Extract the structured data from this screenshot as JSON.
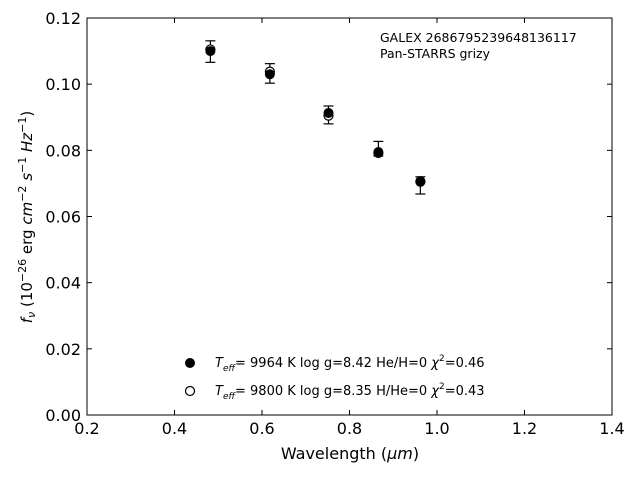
{
  "chart_data": {
    "type": "scatter",
    "xlabel_main": "Wavelength (",
    "xlabel_unit": "μm",
    "xlabel_close": ")",
    "ylabel_f": "f",
    "ylabel_sub": "ν",
    "ylabel_prefix": " (10",
    "ylabel_exp": "−26",
    "ylabel_unit_a": " erg ",
    "ylabel_cm": "cm",
    "ylabel_cm_exp": "−2",
    "ylabel_s": " s",
    "ylabel_s_exp": "−1",
    "ylabel_hz": " Hz",
    "ylabel_hz_exp": "−1",
    "ylabel_close": ")",
    "xlim": [
      0.2,
      1.4
    ],
    "ylim": [
      0.0,
      0.12
    ],
    "x_ticks": [
      0.2,
      0.4,
      0.6,
      0.8,
      1.0,
      1.2,
      1.4
    ],
    "x_tick_labels": [
      "0.2",
      "0.4",
      "0.6",
      "0.8",
      "1.0",
      "1.2",
      "1.4"
    ],
    "y_ticks": [
      0.0,
      0.02,
      0.04,
      0.06,
      0.08,
      0.1,
      0.12
    ],
    "y_tick_labels": [
      "0.00",
      "0.02",
      "0.04",
      "0.06",
      "0.08",
      "0.10",
      "0.12"
    ],
    "annotation_lines": [
      "GALEX 2686795239648136117",
      "Pan-STARRS grizy"
    ],
    "observed": {
      "x": [
        0.482,
        0.618,
        0.752,
        0.866,
        0.962
      ],
      "y": [
        0.11,
        0.1033,
        0.0909,
        0.0795,
        0.0707
      ],
      "err_low": [
        0.1066,
        0.1003,
        0.088,
        0.0783,
        0.0668
      ],
      "err_high": [
        0.1131,
        0.1062,
        0.0934,
        0.0827,
        0.072
      ]
    },
    "series": [
      {
        "marker": "filled",
        "x": [
          0.482,
          0.618,
          0.752,
          0.866,
          0.962
        ],
        "y": [
          0.11,
          0.103,
          0.0913,
          0.0795,
          0.0707
        ],
        "legend": {
          "t": "T",
          "t_sub": "eff",
          "text_a": "=  9964 K  log g=8.42  He/H=0  ",
          "chi": "χ",
          "chi_exp": "2",
          "text_b": "=0.46"
        }
      },
      {
        "marker": "open",
        "x": [
          0.482,
          0.618,
          0.752,
          0.866,
          0.962
        ],
        "y": [
          0.1105,
          0.1038,
          0.0905,
          0.0792,
          0.0705
        ],
        "legend": {
          "t": "T",
          "t_sub": "eff",
          "text_a": "=  9800 K  log g=8.35  H/He=0  ",
          "chi": "χ",
          "chi_exp": "2",
          "text_b": "=0.43"
        }
      }
    ],
    "legend_position": "bottom-center",
    "grid": false
  }
}
